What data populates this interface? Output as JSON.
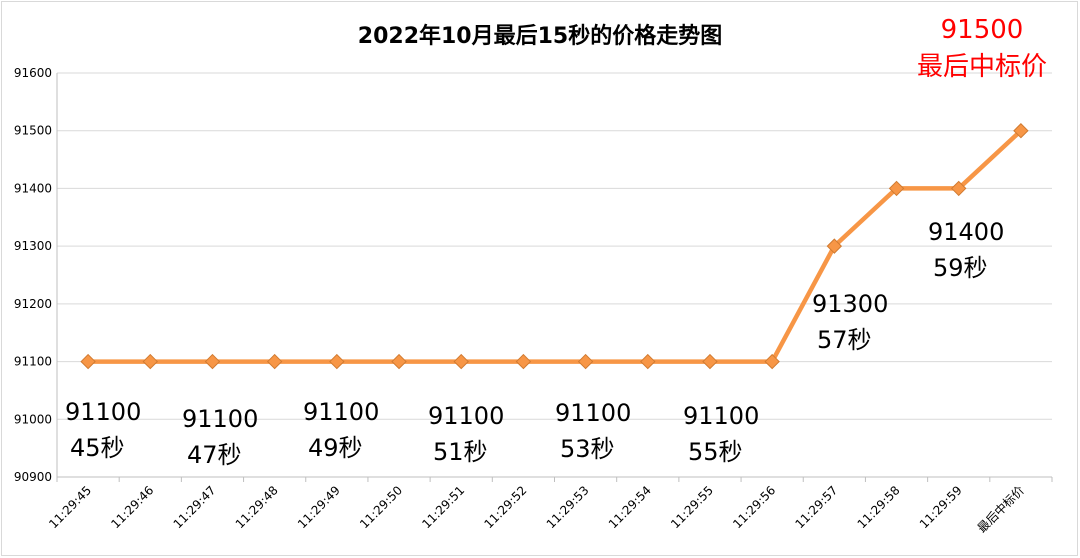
{
  "chart_data": {
    "type": "line",
    "title": "2022年10月最后15秒的价格走势图",
    "categories": [
      "11:29:45",
      "11:29:46",
      "11:29:47",
      "11:29:48",
      "11:29:49",
      "11:29:50",
      "11:29:51",
      "11:29:52",
      "11:29:53",
      "11:29:54",
      "11:29:55",
      "11:29:56",
      "11:29:57",
      "11:29:58",
      "11:29:59",
      "最后中标价"
    ],
    "values": [
      91100,
      91100,
      91100,
      91100,
      91100,
      91100,
      91100,
      91100,
      91100,
      91100,
      91100,
      91100,
      91300,
      91400,
      91400,
      91500
    ],
    "ylim": [
      90900,
      91600
    ],
    "yticks": [
      90900,
      91000,
      91100,
      91200,
      91300,
      91400,
      91500,
      91600
    ],
    "grid": true,
    "line_color": "#f79646",
    "marker_color": "#f79646",
    "annotations": [
      {
        "value": "91100",
        "label": "45秒"
      },
      {
        "value": "91100",
        "label": "47秒"
      },
      {
        "value": "91100",
        "label": "49秒"
      },
      {
        "value": "91100",
        "label": "51秒"
      },
      {
        "value": "91100",
        "label": "53秒"
      },
      {
        "value": "91100",
        "label": "55秒"
      },
      {
        "value": "91300",
        "label": "57秒"
      },
      {
        "value": "91400",
        "label": "59秒"
      }
    ],
    "final_annotation": {
      "value": "91500",
      "label": "最后中标价",
      "color": "#ff0000"
    }
  }
}
